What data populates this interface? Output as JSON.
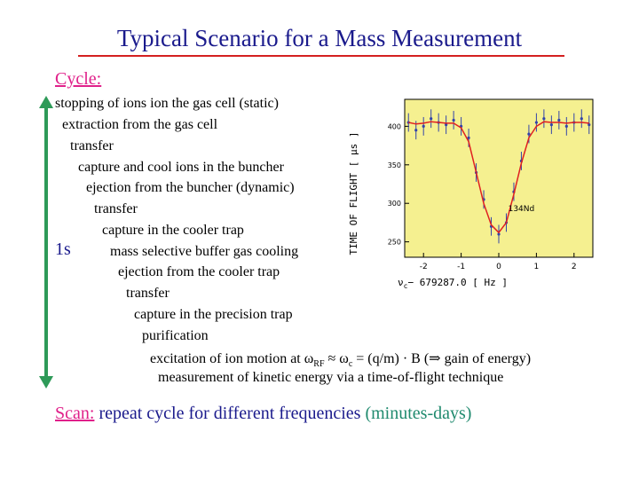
{
  "slide": {
    "title": "Typical Scenario for a Mass Measurement",
    "cycle_label": "Cycle:",
    "duration_label": "1s",
    "steps": [
      "stopping of ions ion the gas cell (static)",
      "extraction from the gas cell",
      "transfer",
      "capture and cool ions in the buncher",
      "ejection from the buncher (dynamic)",
      "transfer",
      "capture in the cooler trap",
      "mass selective buffer gas cooling",
      "ejection from the cooler trap",
      "transfer",
      "capture in the precision trap",
      "purification"
    ],
    "excitation": {
      "prefix": "excitation of ion motion at ",
      "omega_rf": "ω",
      "rf_sub": "RF",
      "approx": " ≈ ",
      "omega_c": "ω",
      "c_sub": "c",
      "suffix": " = (q/m) · B (⇒ gain of energy)"
    },
    "measurement": "measurement of kinetic energy via a time-of-flight technique",
    "scan": {
      "label": "Scan:",
      "text": " repeat cycle for different frequencies ",
      "time": "(minutes-days)"
    }
  },
  "colors": {
    "title": "#1a1a8c",
    "accent": "#e0208a",
    "arrow": "#2e9a58",
    "plot_bg": "#f5f090",
    "curve": "#e02020"
  },
  "chart_data": {
    "type": "scatter",
    "ylabel": "TIME OF FLIGHT [ μs ]",
    "xlabel_prefix": "ν",
    "xlabel_sub": "c",
    "xlabel": "− 679287.0     [ Hz ]",
    "annotation": "134Nd",
    "xlim": [
      -2.5,
      2.5
    ],
    "ylim": [
      230,
      435
    ],
    "x_ticks": [
      "-2",
      "-1",
      "0",
      "1",
      "2"
    ],
    "y_ticks": [
      250,
      300,
      350,
      400
    ],
    "x": [
      -2.4,
      -2.2,
      -2.0,
      -1.8,
      -1.6,
      -1.4,
      -1.2,
      -1.0,
      -0.8,
      -0.6,
      -0.4,
      -0.2,
      0.0,
      0.2,
      0.4,
      0.6,
      0.8,
      1.0,
      1.2,
      1.4,
      1.6,
      1.8,
      2.0,
      2.2,
      2.4
    ],
    "values": [
      405,
      395,
      400,
      410,
      405,
      402,
      408,
      400,
      385,
      340,
      305,
      270,
      260,
      275,
      315,
      355,
      390,
      405,
      410,
      402,
      408,
      400,
      405,
      410,
      402
    ],
    "fit": [
      405,
      403,
      404,
      406,
      405,
      404,
      404,
      398,
      380,
      340,
      300,
      272,
      262,
      275,
      312,
      352,
      385,
      400,
      406,
      405,
      405,
      404,
      405,
      405,
      404
    ],
    "grid": false
  }
}
